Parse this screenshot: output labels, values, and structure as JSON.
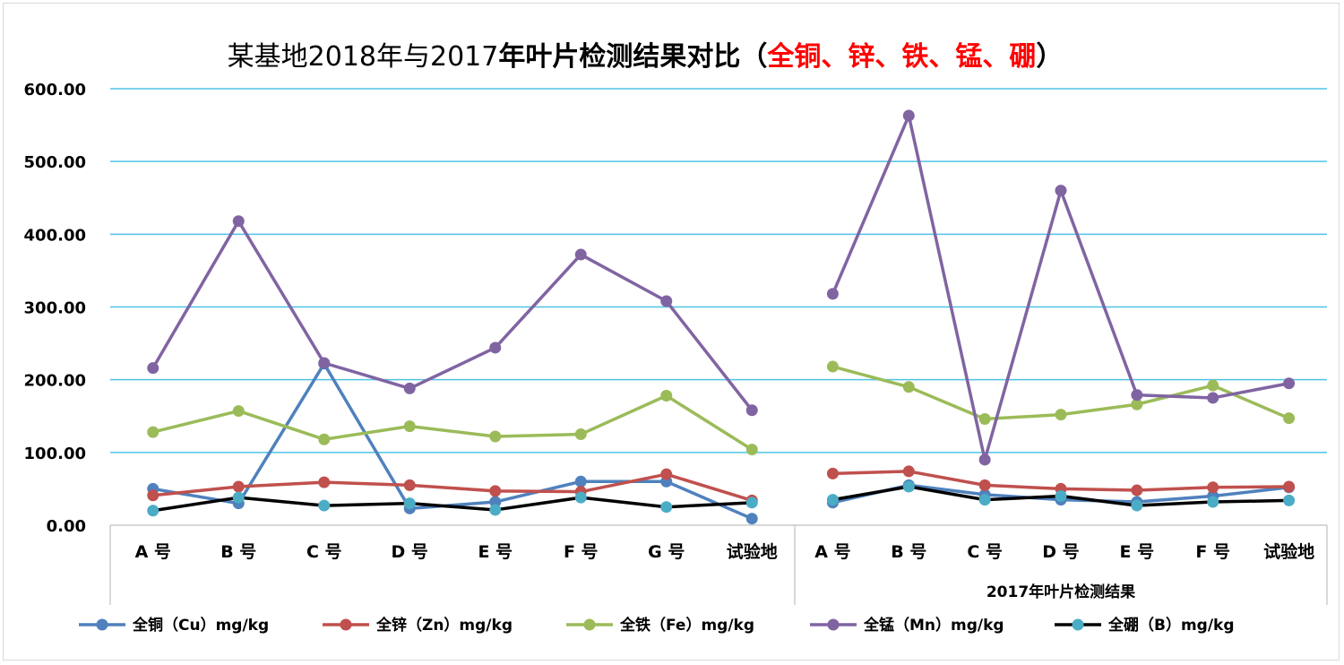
{
  "title": {
    "part1": "某基地2018年与2017",
    "part2": "年叶片检测结果对比（",
    "part3": "全铜、锌、铁、锰、硼",
    "part4": "）"
  },
  "colors": {
    "grid": "#4ec3e6",
    "axis": "#bfbfbf"
  },
  "chart_data": {
    "type": "line",
    "title": "某基地2018年与2017年叶片检测结果对比（全铜、锌、铁、锰、硼）",
    "ylim": [
      0,
      600
    ],
    "y_ticks": [
      "0.00",
      "100.00",
      "200.00",
      "300.00",
      "400.00",
      "500.00",
      "600.00"
    ],
    "grid": true,
    "legend_position": "bottom",
    "groups": [
      {
        "label": "",
        "categories": [
          "A 号",
          "B 号",
          "C 号",
          "D 号",
          "E 号",
          "F 号",
          "G 号",
          "试验地"
        ]
      },
      {
        "label": "2017年叶片检测结果",
        "categories": [
          "A 号",
          "B 号",
          "C 号",
          "D 号",
          "E 号",
          "F 号",
          "试验地"
        ]
      }
    ],
    "series": [
      {
        "name": "全铜（Cu）mg/kg",
        "color": "#4f81bd",
        "marker": "#4f81bd",
        "values": [
          [
            50,
            30,
            222,
            23,
            32,
            60,
            60,
            9
          ],
          [
            31,
            55,
            42,
            35,
            32,
            40,
            52
          ]
        ]
      },
      {
        "name": "全锌（Zn）mg/kg",
        "color": "#c0504d",
        "marker": "#c0504d",
        "values": [
          [
            41,
            53,
            59,
            55,
            47,
            46,
            70,
            34
          ],
          [
            71,
            74,
            55,
            50,
            48,
            52,
            53
          ]
        ]
      },
      {
        "name": "全铁（Fe）mg/kg",
        "color": "#9bbb59",
        "marker": "#9bbb59",
        "values": [
          [
            128,
            157,
            118,
            136,
            122,
            125,
            178,
            104
          ],
          [
            218,
            190,
            146,
            152,
            166,
            192,
            147
          ]
        ]
      },
      {
        "name": "全锰（Mn）mg/kg",
        "color": "#8064a2",
        "marker": "#8064a2",
        "values": [
          [
            216,
            418,
            223,
            188,
            244,
            372,
            308,
            158
          ],
          [
            318,
            563,
            90,
            460,
            179,
            175,
            195
          ]
        ]
      },
      {
        "name": "全硼（B）mg/kg",
        "color": "#000000",
        "marker": "#4bacc6",
        "values": [
          [
            20,
            38,
            27,
            30,
            21,
            38,
            25,
            31
          ],
          [
            35,
            53,
            35,
            40,
            27,
            32,
            34
          ]
        ]
      }
    ]
  }
}
